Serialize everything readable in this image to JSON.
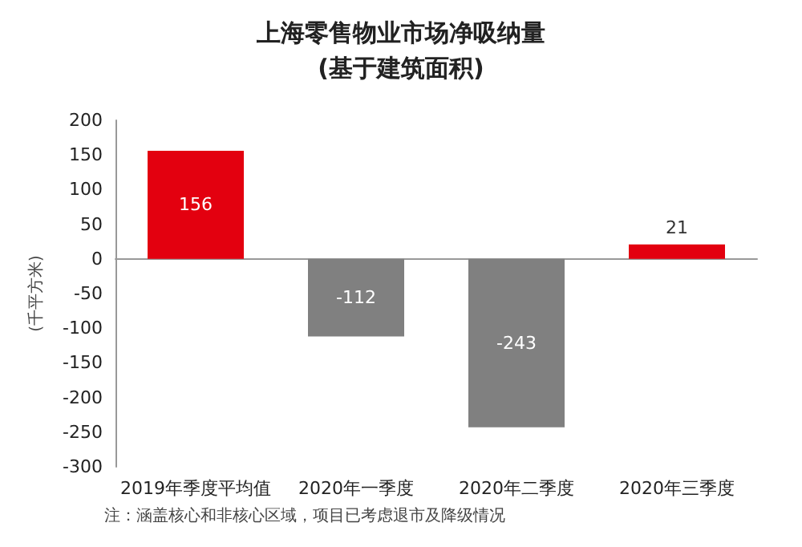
{
  "chart_data": {
    "type": "bar",
    "title": "上海零售物业市场净吸纳量",
    "subtitle": "(基于建筑面积)",
    "ylabel": "(千平方米)",
    "categories": [
      "2019年季度平均值",
      "2020年一季度",
      "2020年二季度",
      "2020年三季度"
    ],
    "values": [
      156,
      -112,
      -243,
      21
    ],
    "colors": [
      "#e3000f",
      "#808080",
      "#808080",
      "#e3000f"
    ],
    "ylim": [
      -300,
      200
    ],
    "yticks": [
      -300,
      -250,
      -200,
      -150,
      -100,
      -50,
      0,
      50,
      100,
      150,
      200
    ],
    "data_labels": true,
    "annotations": [
      "注：涵盖核心和非核心区域，项目已考虑退市及降级情况"
    ]
  }
}
